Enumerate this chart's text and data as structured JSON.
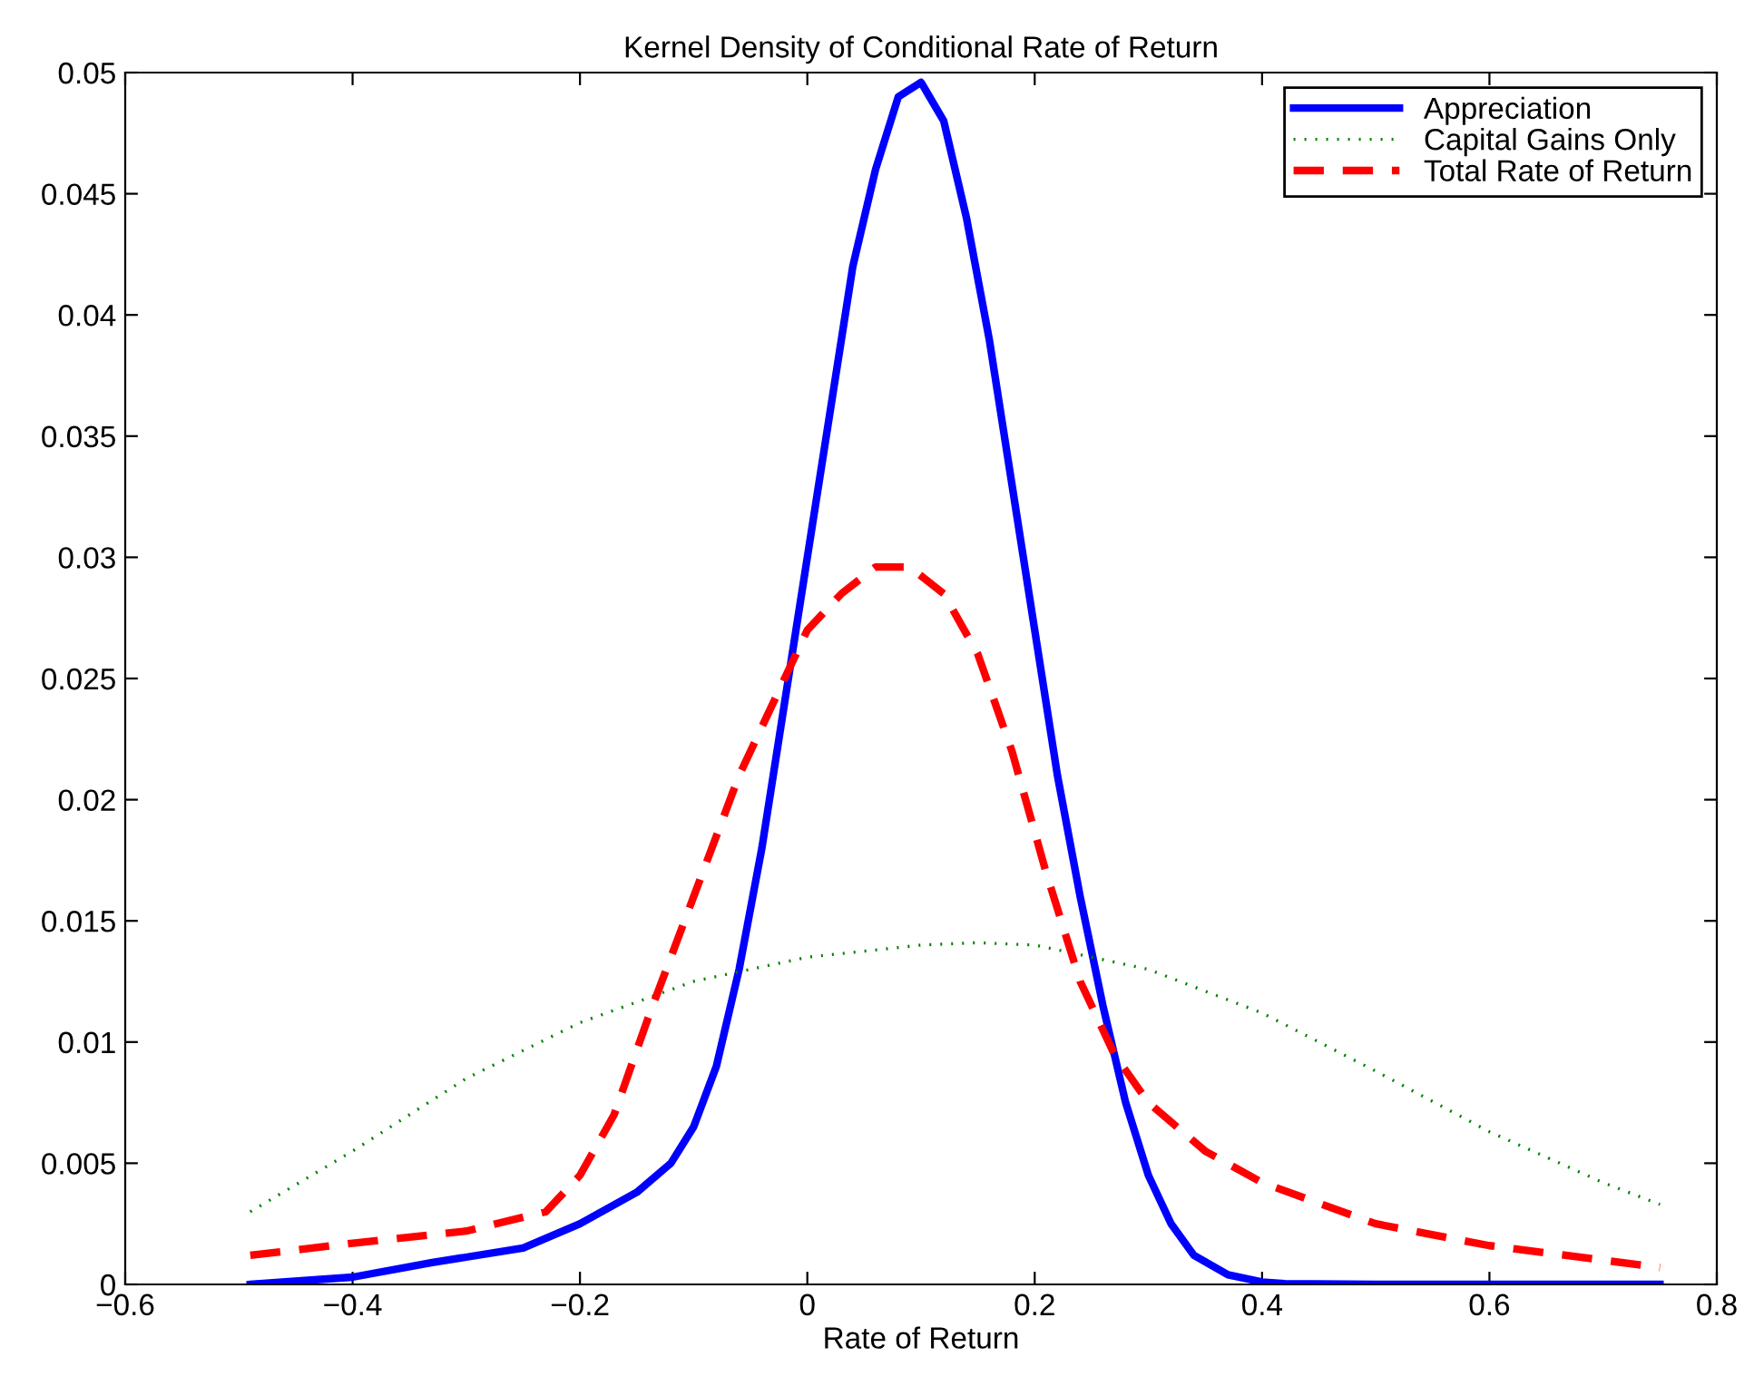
{
  "chart_data": {
    "type": "line",
    "title": "Kernel Density of Conditional Rate of Return",
    "xlabel": "Rate of Return",
    "xlim": [
      -0.6,
      0.8
    ],
    "xticks": [
      {
        "value": -0.6,
        "label": "−0.6"
      },
      {
        "value": -0.4,
        "label": "−0.4"
      },
      {
        "value": -0.2,
        "label": "−0.2"
      },
      0,
      0.2,
      0.4,
      0.6,
      0.8
    ],
    "ylim": [
      0,
      0.05
    ],
    "yticks": [
      0,
      0.005,
      0.01,
      0.015,
      0.02,
      0.025,
      0.03,
      0.035,
      0.04,
      0.045,
      0.05
    ],
    "grid": false,
    "legend": "top right",
    "series": [
      {
        "name": "Appreciation",
        "color": "#0000ff",
        "line_style": "solid",
        "x": [
          -0.49,
          -0.4,
          -0.33,
          -0.25,
          -0.2,
          -0.15,
          -0.12,
          -0.1,
          -0.08,
          -0.06,
          -0.04,
          -0.02,
          0,
          0.02,
          0.04,
          0.06,
          0.08,
          0.1,
          0.12,
          0.14,
          0.16,
          0.18,
          0.2,
          0.22,
          0.24,
          0.26,
          0.28,
          0.3,
          0.32,
          0.34,
          0.37,
          0.4,
          0.42,
          0.5,
          0.75
        ],
        "values": [
          0,
          0.0003,
          0.0009,
          0.0015,
          0.0025,
          0.0038,
          0.005,
          0.0065,
          0.009,
          0.013,
          0.018,
          0.024,
          0.03,
          0.036,
          0.042,
          0.046,
          0.049,
          0.0496,
          0.048,
          0.044,
          0.039,
          0.033,
          0.027,
          0.021,
          0.016,
          0.0115,
          0.0075,
          0.0045,
          0.0025,
          0.0012,
          0.0004,
          0.0001,
          3e-05,
          0,
          0
        ]
      },
      {
        "name": "Capital Gains Only",
        "color": "#008000",
        "line_style": "dotted",
        "x": [
          -0.49,
          -0.4,
          -0.3,
          -0.2,
          -0.1,
          0,
          0.1,
          0.15,
          0.2,
          0.3,
          0.4,
          0.5,
          0.6,
          0.7,
          0.75
        ],
        "values": [
          0.003,
          0.0055,
          0.0085,
          0.0108,
          0.0125,
          0.0135,
          0.014,
          0.0141,
          0.014,
          0.013,
          0.0112,
          0.0088,
          0.0063,
          0.0042,
          0.0033
        ]
      },
      {
        "name": "Total Rate of Return",
        "color": "#ff0000",
        "line_style": "dashed",
        "x": [
          -0.49,
          -0.4,
          -0.3,
          -0.23,
          -0.2,
          -0.17,
          -0.14,
          -0.1,
          -0.06,
          -0.02,
          0,
          0.03,
          0.06,
          0.09,
          0.12,
          0.15,
          0.18,
          0.21,
          0.24,
          0.27,
          0.3,
          0.35,
          0.4,
          0.5,
          0.6,
          0.75
        ],
        "values": [
          0.0012,
          0.0017,
          0.0022,
          0.003,
          0.0045,
          0.007,
          0.011,
          0.016,
          0.021,
          0.025,
          0.027,
          0.0285,
          0.0296,
          0.0296,
          0.0285,
          0.026,
          0.022,
          0.017,
          0.0125,
          0.0095,
          0.0075,
          0.0055,
          0.0042,
          0.0025,
          0.0016,
          0.0007
        ]
      }
    ]
  }
}
